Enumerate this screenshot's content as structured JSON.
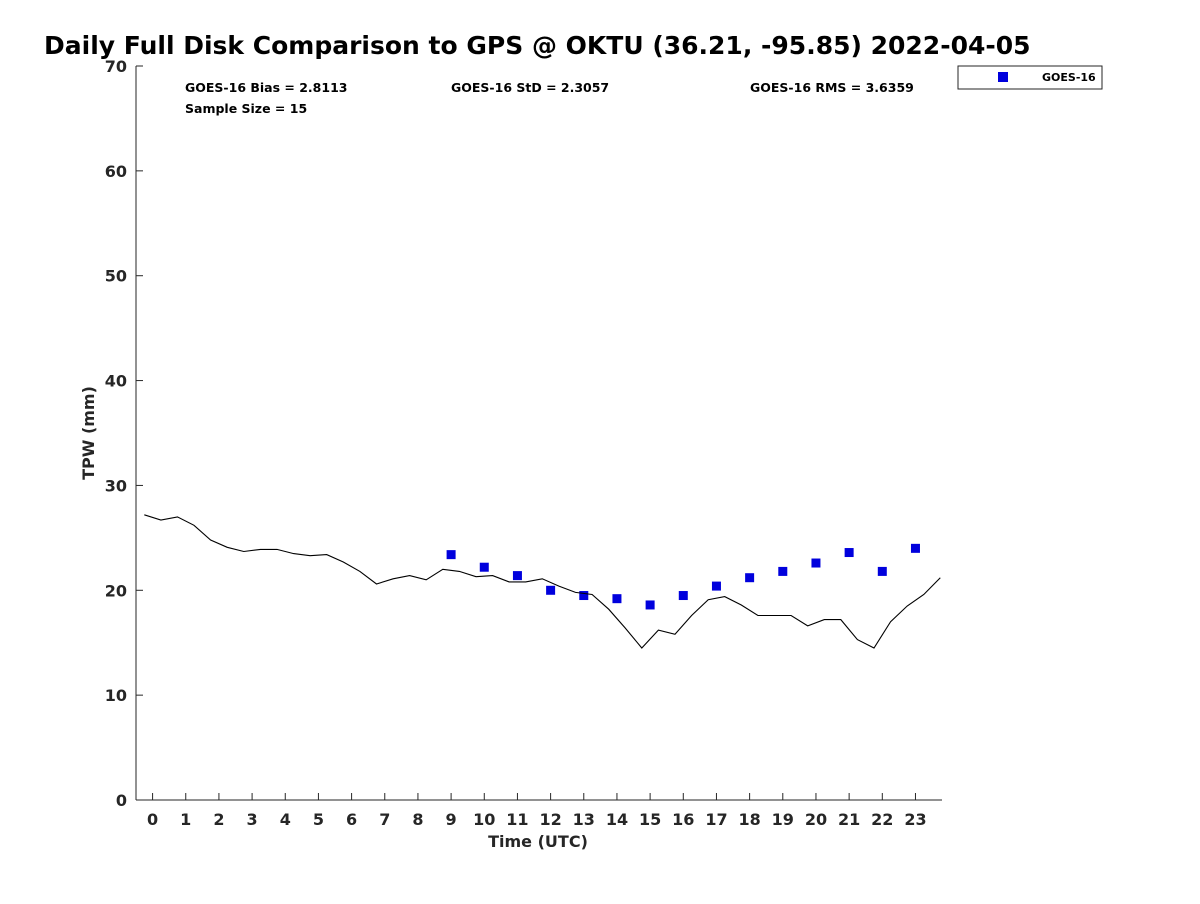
{
  "chart_data": {
    "type": "scatter",
    "title": "Daily Full Disk Comparison to GPS @ OKTU (36.21, -95.85) 2022-04-05",
    "xlabel": "Time (UTC)",
    "ylabel": "TPW (mm)",
    "xlim": [
      -0.5,
      23.8
    ],
    "ylim": [
      0,
      70
    ],
    "xticks": [
      "0",
      "1",
      "2",
      "3",
      "4",
      "5",
      "6",
      "7",
      "8",
      "9",
      "10",
      "11",
      "12",
      "13",
      "14",
      "15",
      "16",
      "17",
      "18",
      "19",
      "20",
      "21",
      "22",
      "23"
    ],
    "yticks": [
      "0",
      "10",
      "20",
      "30",
      "40",
      "50",
      "60",
      "70"
    ],
    "grid": false,
    "legend": {
      "placement": "top-right",
      "entries": [
        "GOES-16"
      ]
    },
    "stats": {
      "bias": "GOES-16 Bias = 2.8113",
      "std": "GOES-16 StD = 2.3057",
      "rms": "GOES-16 RMS = 3.6359",
      "sample": "Sample Size = 15"
    },
    "series": [
      {
        "name": "GOES-16",
        "kind": "markers",
        "color": "#0000dd",
        "x": [
          9,
          10,
          11,
          12,
          13,
          14,
          15,
          16,
          17,
          18,
          19,
          20,
          21,
          22,
          23
        ],
        "y": [
          23.4,
          22.2,
          21.4,
          20.0,
          19.5,
          19.2,
          18.6,
          19.5,
          20.4,
          21.2,
          21.8,
          22.6,
          23.6,
          21.8,
          24.0
        ]
      },
      {
        "kind": "line",
        "color": "#000000",
        "x": [
          -0.25,
          0.25,
          0.75,
          1.25,
          1.75,
          2.25,
          2.75,
          3.25,
          3.75,
          4.25,
          4.75,
          5.25,
          5.75,
          6.25,
          6.75,
          7.25,
          7.75,
          8.25,
          8.75,
          9.25,
          9.75,
          10.25,
          10.75,
          11.25,
          11.75,
          12.25,
          12.75,
          13.25,
          13.75,
          14.25,
          14.75,
          15.25,
          15.75,
          16.25,
          16.75,
          17.25,
          17.75,
          18.25,
          18.75,
          19.25,
          19.75,
          20.25,
          20.75,
          21.25,
          21.75,
          22.25,
          22.75,
          23.25,
          23.75
        ],
        "y": [
          27.2,
          26.7,
          27.0,
          26.2,
          24.8,
          24.1,
          23.7,
          23.9,
          23.9,
          23.5,
          23.3,
          23.4,
          22.7,
          21.8,
          20.6,
          21.1,
          21.4,
          21.0,
          22.0,
          21.8,
          21.3,
          21.4,
          20.8,
          20.8,
          21.1,
          20.4,
          19.8,
          19.6,
          18.2,
          16.4,
          14.5,
          16.2,
          15.8,
          17.6,
          19.1,
          19.4,
          18.6,
          17.6,
          17.6,
          17.6,
          16.6,
          17.2,
          17.2,
          15.3,
          14.5,
          17.0,
          18.5,
          19.6,
          21.2
        ]
      }
    ]
  }
}
